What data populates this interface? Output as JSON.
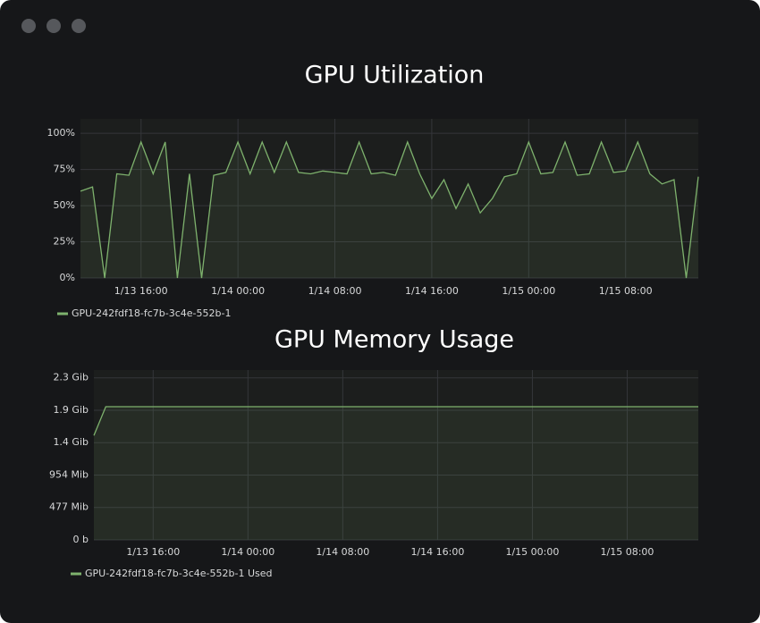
{
  "chart_data": [
    {
      "type": "line",
      "title": "GPU Utilization",
      "x": [
        "1/13 11:00",
        "1/13 12:00",
        "1/13 13:00",
        "1/13 14:00",
        "1/13 15:00",
        "1/13 16:00",
        "1/13 17:00",
        "1/13 18:00",
        "1/13 19:00",
        "1/13 20:00",
        "1/13 21:00",
        "1/13 22:00",
        "1/13 23:00",
        "1/14 00:00",
        "1/14 01:00",
        "1/14 02:00",
        "1/14 03:00",
        "1/14 04:00",
        "1/14 05:00",
        "1/14 06:00",
        "1/14 07:00",
        "1/14 08:00",
        "1/14 09:00",
        "1/14 10:00",
        "1/14 11:00",
        "1/14 12:00",
        "1/14 13:00",
        "1/14 14:00",
        "1/14 15:00",
        "1/14 16:00",
        "1/14 17:00",
        "1/14 18:00",
        "1/14 19:00",
        "1/14 20:00",
        "1/14 21:00",
        "1/14 22:00",
        "1/14 23:00",
        "1/15 00:00",
        "1/15 01:00",
        "1/15 02:00",
        "1/15 03:00",
        "1/15 04:00",
        "1/15 05:00",
        "1/15 06:00",
        "1/15 07:00",
        "1/15 08:00",
        "1/15 09:00",
        "1/15 10:00",
        "1/15 11:00",
        "1/15 12:00",
        "1/15 13:00",
        "1/15 14:00"
      ],
      "xticks": [
        "1/13 16:00",
        "1/14 00:00",
        "1/14 08:00",
        "1/14 16:00",
        "1/15 00:00",
        "1/15 08:00"
      ],
      "series": [
        {
          "name": "GPU-242fdf18-fc7b-3c4e-552b-1",
          "color": "#7eb26d",
          "values": [
            60,
            63,
            0,
            72,
            71,
            94,
            72,
            94,
            0,
            72,
            0,
            71,
            73,
            94,
            72,
            94,
            73,
            94,
            73,
            72,
            74,
            73,
            72,
            94,
            72,
            73,
            71,
            94,
            72,
            55,
            68,
            48,
            65,
            45,
            55,
            70,
            72,
            94,
            72,
            73,
            94,
            71,
            72,
            94,
            73,
            74,
            94,
            72,
            65,
            68,
            0,
            70
          ]
        }
      ],
      "ylim": [
        0,
        110
      ],
      "yticks": [
        {
          "value": 0,
          "label": "0%"
        },
        {
          "value": 25,
          "label": "25%"
        },
        {
          "value": 50,
          "label": "50%"
        },
        {
          "value": 75,
          "label": "75%"
        },
        {
          "value": 100,
          "label": "100%"
        }
      ],
      "grid": true
    },
    {
      "type": "line",
      "title": "GPU Memory Usage",
      "x": [
        "1/13 11:00",
        "1/13 12:00",
        "1/13 13:00",
        "1/13 14:00",
        "1/13 15:00",
        "1/13 16:00",
        "1/13 17:00",
        "1/13 18:00",
        "1/13 19:00",
        "1/13 20:00",
        "1/13 21:00",
        "1/13 22:00",
        "1/13 23:00",
        "1/14 00:00",
        "1/14 01:00",
        "1/14 02:00",
        "1/14 03:00",
        "1/14 04:00",
        "1/14 05:00",
        "1/14 06:00",
        "1/14 07:00",
        "1/14 08:00",
        "1/14 09:00",
        "1/14 10:00",
        "1/14 11:00",
        "1/14 12:00",
        "1/14 13:00",
        "1/14 14:00",
        "1/14 15:00",
        "1/14 16:00",
        "1/14 17:00",
        "1/14 18:00",
        "1/14 19:00",
        "1/14 20:00",
        "1/14 21:00",
        "1/14 22:00",
        "1/14 23:00",
        "1/15 00:00",
        "1/15 01:00",
        "1/15 02:00",
        "1/15 03:00",
        "1/15 04:00",
        "1/15 05:00",
        "1/15 06:00",
        "1/15 07:00",
        "1/15 08:00",
        "1/15 09:00",
        "1/15 10:00",
        "1/15 11:00",
        "1/15 12:00",
        "1/15 13:00",
        "1/15 14:00"
      ],
      "xticks": [
        "1/13 16:00",
        "1/14 00:00",
        "1/14 08:00",
        "1/14 16:00",
        "1/15 00:00",
        "1/15 08:00"
      ],
      "series": [
        {
          "name": "GPU-242fdf18-fc7b-3c4e-552b-1 Used",
          "color": "#7eb26d",
          "values": [
            1537,
            1961,
            1961,
            1961,
            1961,
            1961,
            1961,
            1961,
            1961,
            1961,
            1961,
            1961,
            1961,
            1961,
            1961,
            1961,
            1961,
            1961,
            1961,
            1961,
            1961,
            1961,
            1961,
            1961,
            1961,
            1961,
            1961,
            1961,
            1961,
            1961,
            1961,
            1961,
            1961,
            1961,
            1961,
            1961,
            1961,
            1961,
            1961,
            1961,
            1961,
            1961,
            1961,
            1961,
            1961,
            1961,
            1961,
            1961,
            1961,
            1961,
            1961,
            1961
          ]
        }
      ],
      "ylim": [
        0,
        2500
      ],
      "yticks": [
        {
          "value": 0,
          "label": "0 b"
        },
        {
          "value": 477,
          "label": "477 Mib"
        },
        {
          "value": 954,
          "label": "954 Mib"
        },
        {
          "value": 1431,
          "label": "1.4 Gib"
        },
        {
          "value": 1908,
          "label": "1.9 Gib"
        },
        {
          "value": 2385,
          "label": "2.3 Gib"
        }
      ],
      "grid": true
    }
  ]
}
